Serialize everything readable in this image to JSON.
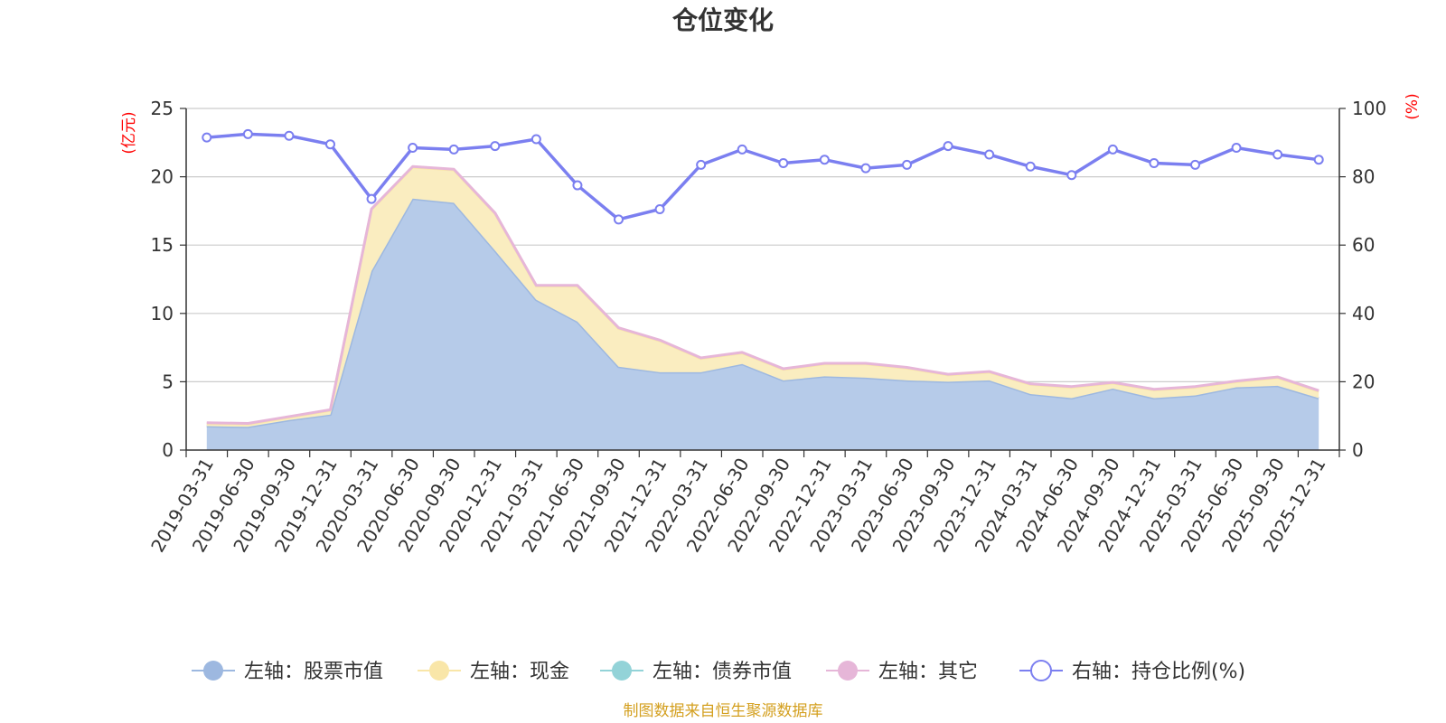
{
  "chart_data": {
    "type": "area",
    "title": "仓位变化",
    "left_axis_unit": "(亿元)",
    "right_axis_unit": "(%)",
    "left_ylim": [
      0,
      25
    ],
    "left_ticks": [
      "0",
      "5",
      "10",
      "15",
      "20",
      "25"
    ],
    "right_ylim": [
      0,
      100
    ],
    "right_ticks": [
      "0",
      "20",
      "40",
      "60",
      "80",
      "100"
    ],
    "categories": [
      "2019-03-31",
      "2019-06-30",
      "2019-09-30",
      "2019-12-31",
      "2020-03-31",
      "2020-06-30",
      "2020-09-30",
      "2020-12-31",
      "2021-03-31",
      "2021-06-30",
      "2021-09-30",
      "2021-12-31",
      "2022-03-31",
      "2022-06-30",
      "2022-09-30",
      "2022-12-31",
      "2023-03-31",
      "2023-06-30",
      "2023-09-30",
      "2023-12-31",
      "2024-03-31",
      "2024-06-30",
      "2024-09-30",
      "2024-12-31",
      "2025-03-31",
      "2025-06-30",
      "2025-09-30",
      "2025-12-31"
    ],
    "series": [
      {
        "name": "左轴：股票市值",
        "axis": "left",
        "color": "#9db8e0",
        "fill": "#b6cbe9",
        "values": [
          1.75,
          1.7,
          2.2,
          2.6,
          13.1,
          18.4,
          18.1,
          14.6,
          11.0,
          9.4,
          6.1,
          5.7,
          5.7,
          6.3,
          5.1,
          5.4,
          5.3,
          5.1,
          5.0,
          5.1,
          4.1,
          3.8,
          4.5,
          3.8,
          4.0,
          4.6,
          4.7,
          3.8
        ]
      },
      {
        "name": "左轴：现金",
        "axis": "left",
        "color": "#f9e6a8",
        "fill": "#faedc0",
        "values": [
          0.2,
          0.2,
          0.2,
          0.3,
          4.5,
          2.3,
          2.4,
          2.7,
          1.0,
          2.6,
          2.8,
          2.3,
          1.0,
          0.8,
          0.8,
          0.9,
          1.0,
          0.9,
          0.5,
          0.6,
          0.7,
          0.8,
          0.4,
          0.6,
          0.6,
          0.4,
          0.6,
          0.5
        ]
      },
      {
        "name": "左轴：债券市值",
        "axis": "left",
        "color": "#93d3d8",
        "fill": "#93d3d8",
        "values": [
          0,
          0,
          0,
          0,
          0,
          0,
          0,
          0,
          0,
          0,
          0,
          0,
          0,
          0,
          0,
          0,
          0,
          0,
          0,
          0,
          0,
          0,
          0,
          0,
          0,
          0,
          0,
          0
        ]
      },
      {
        "name": "左轴：其它",
        "axis": "left",
        "color": "#e6b6d8",
        "fill": "#f0cde6",
        "values": [
          0.05,
          0.05,
          0.05,
          0.05,
          0.05,
          0.05,
          0.05,
          0.05,
          0.05,
          0.05,
          0.05,
          0.05,
          0.05,
          0.05,
          0.05,
          0.05,
          0.05,
          0.05,
          0.05,
          0.05,
          0.05,
          0.05,
          0.05,
          0.05,
          0.05,
          0.05,
          0.05,
          0.05
        ]
      },
      {
        "name": "右轴：持仓比例(%)",
        "axis": "right",
        "color": "#7b7ff0",
        "values": [
          91.5,
          92.5,
          92.0,
          89.5,
          73.5,
          88.5,
          88.0,
          89.0,
          91.0,
          77.5,
          67.5,
          70.5,
          83.5,
          88.0,
          84.0,
          85.0,
          82.5,
          83.5,
          89.0,
          86.5,
          83.0,
          80.5,
          88.0,
          84.0,
          83.5,
          88.5,
          86.5,
          85.0
        ]
      }
    ],
    "legend_position": "bottom",
    "grid": true,
    "source": "制图数据来自恒生聚源数据库"
  }
}
